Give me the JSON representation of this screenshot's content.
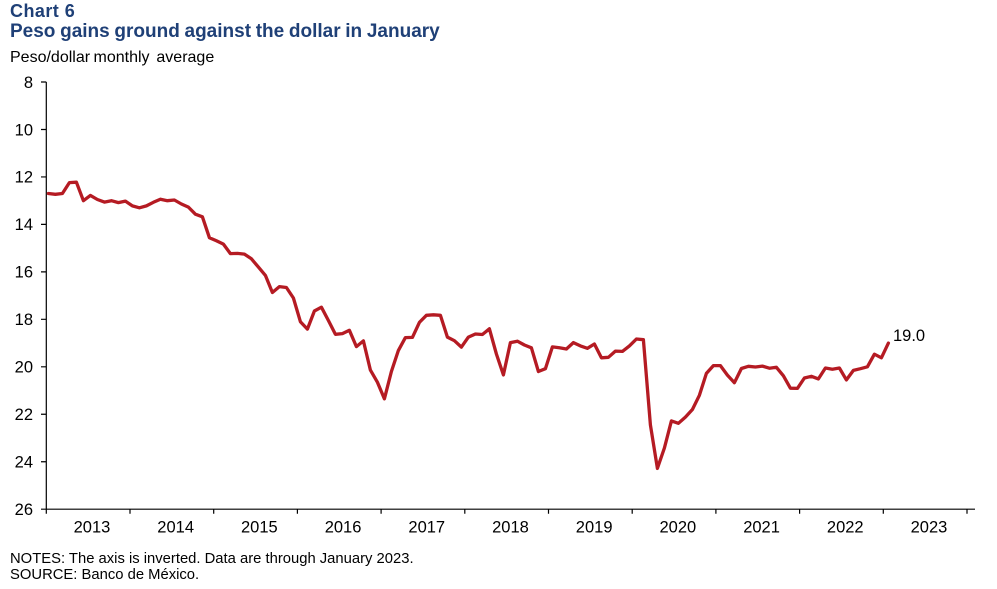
{
  "title": {
    "line1": "Chart 6",
    "line2": "Peso gains ground against the dollar in January"
  },
  "subtitle": "Peso/dollar monthly  average",
  "notes": {
    "line1": "NOTES: The axis is inverted. Data are through January 2023.",
    "line2": "SOURCE: Banco de México."
  },
  "colors": {
    "line": "#b51b23",
    "title": "#1f4077",
    "axis": "#000000"
  },
  "chart_data": {
    "type": "line",
    "title": "Peso gains ground against the dollar in January",
    "ylabel": "Peso/dollar monthly  average",
    "y_axis_inverted": true,
    "ylim": [
      8,
      26
    ],
    "y_ticks": [
      8,
      10,
      12,
      14,
      16,
      18,
      20,
      22,
      24,
      26
    ],
    "x_tick_years": [
      "2013",
      "2014",
      "2015",
      "2016",
      "2017",
      "2018",
      "2019",
      "2020",
      "2021",
      "2022",
      "2023"
    ],
    "x_start": "2013-01",
    "x_end": "2023-01",
    "x_frequency": "monthly",
    "last_value_label": "19.0",
    "values": [
      12.7,
      12.73,
      12.7,
      12.24,
      12.22,
      13.0,
      12.78,
      12.95,
      13.06,
      13.0,
      13.08,
      13.02,
      13.22,
      13.3,
      13.22,
      13.07,
      12.94,
      13.0,
      12.97,
      13.14,
      13.27,
      13.57,
      13.68,
      14.56,
      14.69,
      14.83,
      15.23,
      15.22,
      15.25,
      15.45,
      15.8,
      16.15,
      16.87,
      16.62,
      16.66,
      17.1,
      18.1,
      18.41,
      17.65,
      17.49,
      18.05,
      18.63,
      18.6,
      18.46,
      19.15,
      18.91,
      20.14,
      20.65,
      21.35,
      20.2,
      19.31,
      18.77,
      18.76,
      18.13,
      17.83,
      17.81,
      17.83,
      18.75,
      18.9,
      19.17,
      18.75,
      18.62,
      18.64,
      18.4,
      19.46,
      20.34,
      18.98,
      18.92,
      19.08,
      19.2,
      20.2,
      20.08,
      19.16,
      19.2,
      19.25,
      18.98,
      19.12,
      19.22,
      19.04,
      19.62,
      19.6,
      19.34,
      19.35,
      19.12,
      18.83,
      18.86,
      22.45,
      24.28,
      23.42,
      22.28,
      22.38,
      22.12,
      21.8,
      21.2,
      20.28,
      19.95,
      19.95,
      20.35,
      20.67,
      20.07,
      19.98,
      20.01,
      19.97,
      20.06,
      20.02,
      20.38,
      20.9,
      20.91,
      20.47,
      20.4,
      20.51,
      20.05,
      20.1,
      20.05,
      20.55,
      20.15,
      20.08,
      20.0,
      19.47,
      19.62,
      19.0
    ]
  }
}
